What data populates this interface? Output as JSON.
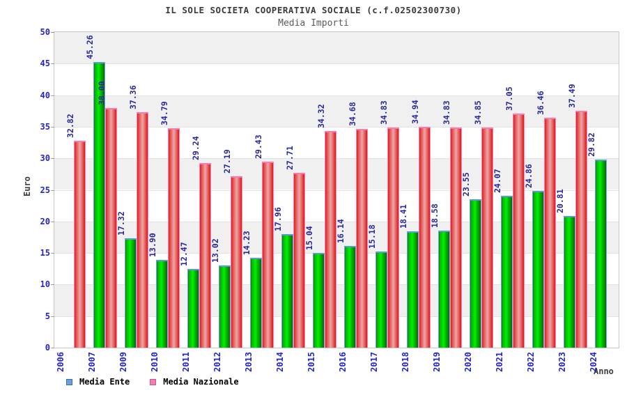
{
  "title": "IL SOLE SOCIETA COOPERATIVA SOCIALE (c.f.02502300730)",
  "subtitle": "Media Importi",
  "axes": {
    "y_label": "Euro",
    "x_label": "Anno",
    "y_ticks": [
      0,
      5,
      10,
      15,
      20,
      25,
      30,
      35,
      40,
      45,
      50
    ]
  },
  "legend": [
    {
      "label": "Media Ente",
      "fill": "#6f9fd8",
      "border": "#3c6cb4"
    },
    {
      "label": "Media Nazionale",
      "fill": "#ef7fae",
      "border": "#d05585"
    }
  ],
  "colors": {
    "tick_label": "#2424cd",
    "value_label": "#28289a",
    "axis_title": "#3f3f3f",
    "title": "#3a3a3a",
    "subtitle": "#5a5a5a",
    "band_gray": "#f0f0f1",
    "plot_border": "#c9c9c9",
    "bar_green": "#00cc00",
    "bar_green_outline": "#79a9e2",
    "bar_red": "#e03030",
    "bar_red_outline": "#ff86ba"
  },
  "chart_data": {
    "type": "bar",
    "title": "IL SOLE SOCIETA COOPERATIVA SOCIALE (c.f.02502300730)",
    "subtitle": "Media Importi",
    "xlabel": "Anno",
    "ylabel": "Euro",
    "ylim": [
      0,
      50
    ],
    "y_tick_step": 5,
    "grid": "alternating-horizontal-bands",
    "legend_position": "bottom-left",
    "value_labels": "rotated-90-above-bars",
    "categories": [
      "2006",
      "2007",
      "2009",
      "2010",
      "2011",
      "2012",
      "2013",
      "2014",
      "2015",
      "2016",
      "2017",
      "2018",
      "2019",
      "2020",
      "2021",
      "2022",
      "2023",
      "2024"
    ],
    "series": [
      {
        "name": "Media Ente",
        "key": "media-ente",
        "color": "#00cc00",
        "values": [
          null,
          45.26,
          17.32,
          13.9,
          12.47,
          13.02,
          14.23,
          17.96,
          15.04,
          16.14,
          15.18,
          18.41,
          18.58,
          23.55,
          24.07,
          24.86,
          20.81,
          29.82
        ]
      },
      {
        "name": "Media Nazionale",
        "key": "media-nazionale",
        "color": "#e03030",
        "values": [
          32.82,
          38.0,
          37.36,
          34.79,
          29.24,
          27.19,
          29.43,
          27.71,
          34.32,
          34.68,
          34.83,
          34.94,
          34.83,
          34.85,
          37.05,
          36.46,
          37.49,
          null
        ]
      }
    ]
  }
}
